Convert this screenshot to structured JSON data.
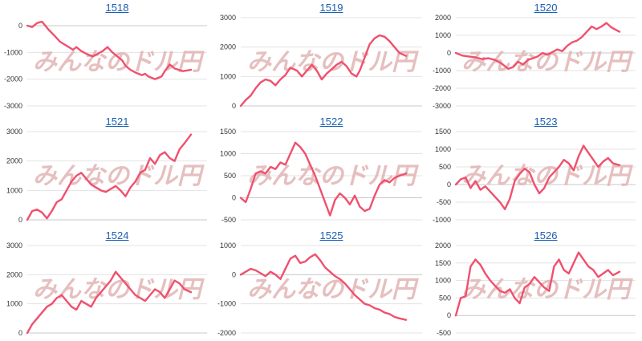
{
  "colors": {
    "series": "#f0506e",
    "title_link": "#1a5fb4",
    "grid": "#e3e3e3",
    "watermark": "#e2b4b4",
    "watermark2": "#b4b4b4"
  },
  "watermark_text": "みんなのドル円",
  "chart_data": [
    {
      "type": "line",
      "title": "1518",
      "yticks": [
        0,
        -1000,
        -2000,
        -3000
      ],
      "ylim": [
        -3000,
        300
      ],
      "x": [
        0,
        3,
        6,
        9,
        13,
        17,
        20,
        24,
        28,
        30,
        33,
        36,
        40,
        43,
        46,
        49,
        52,
        55,
        58,
        60,
        63,
        66,
        68,
        70,
        72,
        74,
        76,
        78,
        80,
        82,
        84,
        87,
        90,
        95,
        100
      ],
      "y": [
        0,
        -50,
        100,
        150,
        -150,
        -400,
        -600,
        -750,
        -900,
        -800,
        -950,
        -1050,
        -1150,
        -1050,
        -950,
        -800,
        -1000,
        -1150,
        -1300,
        -1500,
        -1650,
        -1750,
        -1800,
        -1850,
        -1800,
        -1900,
        -1950,
        -2000,
        -1950,
        -1900,
        -1700,
        -1450,
        -1600,
        -1700,
        -1650
      ]
    },
    {
      "type": "line",
      "title": "1519",
      "yticks": [
        3000,
        2000,
        1000,
        0
      ],
      "ylim": [
        0,
        3000
      ],
      "x": [
        0,
        3,
        6,
        9,
        12,
        15,
        18,
        21,
        24,
        27,
        30,
        34,
        37,
        40,
        43,
        46,
        49,
        52,
        55,
        58,
        61,
        64,
        67,
        70,
        72,
        74,
        76,
        78,
        81,
        84,
        87,
        90,
        93,
        96,
        100
      ],
      "y": [
        0,
        200,
        350,
        600,
        800,
        900,
        850,
        700,
        900,
        1050,
        1300,
        1200,
        1000,
        1200,
        1400,
        1200,
        900,
        1100,
        1250,
        1400,
        1500,
        1350,
        1100,
        1000,
        1200,
        1500,
        1800,
        2100,
        2300,
        2400,
        2350,
        2200,
        2000,
        1800,
        1700
      ]
    },
    {
      "type": "line",
      "title": "1520",
      "yticks": [
        2000,
        1000,
        0,
        -1000,
        -2000,
        -3000
      ],
      "ylim": [
        -3000,
        2000
      ],
      "x": [
        0,
        4,
        8,
        12,
        16,
        20,
        24,
        28,
        32,
        35,
        38,
        41,
        44,
        47,
        50,
        53,
        56,
        59,
        62,
        65,
        68,
        71,
        74,
        77,
        80,
        83,
        86,
        89,
        92,
        95,
        98,
        100
      ],
      "y": [
        0,
        -150,
        -200,
        -250,
        -350,
        -300,
        -400,
        -600,
        -900,
        -800,
        -500,
        -650,
        -400,
        -300,
        -200,
        0,
        -100,
        50,
        200,
        100,
        400,
        600,
        700,
        900,
        1200,
        1500,
        1350,
        1500,
        1700,
        1450,
        1300,
        1200
      ]
    },
    {
      "type": "line",
      "title": "1521",
      "yticks": [
        3000,
        2000,
        1000,
        0
      ],
      "ylim": [
        0,
        3000
      ],
      "x": [
        0,
        3,
        6,
        9,
        12,
        15,
        18,
        21,
        24,
        27,
        30,
        33,
        36,
        39,
        42,
        45,
        48,
        51,
        54,
        57,
        60,
        63,
        66,
        69,
        72,
        75,
        78,
        81,
        84,
        87,
        90,
        93,
        96,
        100
      ],
      "y": [
        0,
        300,
        350,
        250,
        50,
        300,
        600,
        700,
        1000,
        1300,
        1500,
        1600,
        1400,
        1200,
        1100,
        1000,
        950,
        1050,
        1150,
        1000,
        800,
        1100,
        1300,
        1600,
        1700,
        2100,
        1900,
        2200,
        2300,
        2100,
        2000,
        2400,
        2600,
        2900
      ]
    },
    {
      "type": "line",
      "title": "1522",
      "yticks": [
        1500,
        1000,
        500,
        0,
        -500
      ],
      "ylim": [
        -500,
        1500
      ],
      "x": [
        0,
        3,
        6,
        9,
        12,
        15,
        18,
        21,
        24,
        27,
        30,
        33,
        36,
        39,
        42,
        45,
        48,
        51,
        54,
        57,
        60,
        63,
        66,
        69,
        72,
        75,
        78,
        81,
        84,
        87,
        90,
        93,
        96,
        100
      ],
      "y": [
        0,
        -100,
        200,
        550,
        600,
        550,
        700,
        650,
        800,
        750,
        1000,
        1250,
        1150,
        1000,
        750,
        500,
        200,
        -100,
        -400,
        -50,
        100,
        0,
        -150,
        50,
        -200,
        -300,
        -250,
        50,
        300,
        400,
        350,
        450,
        500,
        550
      ]
    },
    {
      "type": "line",
      "title": "1523",
      "yticks": [
        1500,
        1000,
        500,
        0,
        -500,
        -1000
      ],
      "ylim": [
        -1000,
        1500
      ],
      "x": [
        0,
        3,
        6,
        9,
        12,
        15,
        18,
        21,
        24,
        27,
        30,
        33,
        36,
        39,
        42,
        45,
        48,
        51,
        54,
        57,
        60,
        63,
        66,
        69,
        72,
        75,
        78,
        81,
        84,
        87,
        90,
        93,
        96,
        100
      ],
      "y": [
        0,
        150,
        200,
        -100,
        100,
        -150,
        -50,
        -200,
        -350,
        -500,
        -700,
        -400,
        100,
        300,
        450,
        350,
        0,
        -250,
        -100,
        200,
        350,
        500,
        700,
        600,
        400,
        800,
        1100,
        900,
        700,
        500,
        650,
        750,
        600,
        550
      ]
    },
    {
      "type": "line",
      "title": "1524",
      "yticks": [
        3000,
        2000,
        1000,
        0
      ],
      "ylim": [
        0,
        3000
      ],
      "x": [
        0,
        3,
        6,
        9,
        12,
        15,
        18,
        21,
        24,
        27,
        30,
        33,
        36,
        39,
        42,
        45,
        48,
        51,
        54,
        57,
        60,
        63,
        66,
        69,
        72,
        75,
        78,
        81,
        84,
        87,
        90,
        93,
        96,
        100
      ],
      "y": [
        0,
        300,
        500,
        700,
        900,
        1000,
        1200,
        1300,
        1100,
        900,
        800,
        1100,
        1000,
        900,
        1200,
        1400,
        1600,
        1800,
        2100,
        1900,
        1700,
        1500,
        1300,
        1200,
        1100,
        1300,
        1500,
        1400,
        1200,
        1500,
        1800,
        1700,
        1500,
        1400
      ]
    },
    {
      "type": "line",
      "title": "1525",
      "yticks": [
        1000,
        0,
        -1000,
        -2000
      ],
      "ylim": [
        -2000,
        1000
      ],
      "x": [
        0,
        3,
        6,
        9,
        12,
        15,
        18,
        21,
        24,
        27,
        30,
        33,
        36,
        39,
        42,
        45,
        48,
        51,
        54,
        57,
        60,
        63,
        66,
        69,
        72,
        75,
        78,
        81,
        84,
        87,
        90,
        93,
        96,
        100
      ],
      "y": [
        0,
        100,
        200,
        150,
        50,
        -50,
        100,
        0,
        -150,
        200,
        550,
        650,
        400,
        450,
        600,
        700,
        500,
        250,
        100,
        -50,
        -150,
        -300,
        -500,
        -700,
        -850,
        -1000,
        -1050,
        -1150,
        -1200,
        -1300,
        -1350,
        -1450,
        -1500,
        -1550
      ]
    },
    {
      "type": "line",
      "title": "1526",
      "yticks": [
        2000,
        1500,
        1000,
        500,
        0,
        -500
      ],
      "ylim": [
        -500,
        2000
      ],
      "x": [
        0,
        3,
        6,
        9,
        12,
        15,
        18,
        21,
        24,
        27,
        30,
        33,
        36,
        39,
        42,
        45,
        48,
        51,
        54,
        57,
        60,
        63,
        66,
        69,
        72,
        75,
        78,
        81,
        84,
        87,
        90,
        93,
        96,
        100
      ],
      "y": [
        0,
        500,
        550,
        1400,
        1600,
        1450,
        1200,
        1000,
        850,
        700,
        650,
        750,
        500,
        350,
        800,
        900,
        1100,
        950,
        800,
        700,
        1400,
        1600,
        1300,
        1200,
        1500,
        1800,
        1600,
        1400,
        1300,
        1100,
        1200,
        1300,
        1150,
        1250
      ]
    }
  ]
}
